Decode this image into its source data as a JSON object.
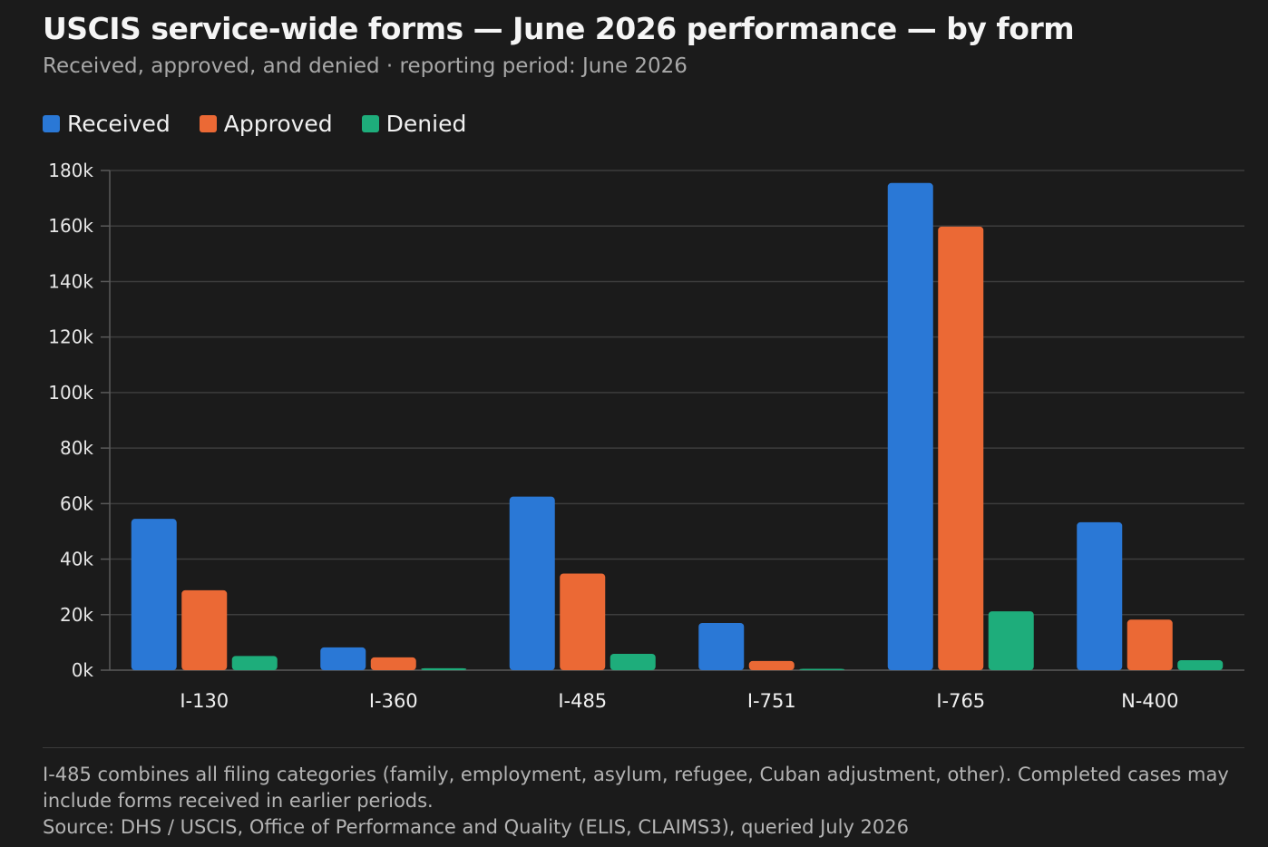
{
  "title": "USCIS service-wide forms — June 2026 performance — by form",
  "subtitle": "Received, approved, and denied · reporting period: June 2026",
  "footnote": "I-485 combines all filing categories (family, employment, asylum, refugee, Cuban adjustment, other). Completed cases may include forms received in earlier periods.",
  "source": "Source: DHS / USCIS, Office of Performance and Quality (ELIS, CLAIMS3), queried July 2026",
  "chart_data": {
    "type": "bar",
    "categories": [
      "I-130",
      "I-360",
      "I-485",
      "I-751",
      "I-765",
      "N-400"
    ],
    "series": [
      {
        "name": "Received",
        "color": "#2a78d6",
        "values": [
          54500,
          8200,
          62500,
          17000,
          175500,
          53300
        ]
      },
      {
        "name": "Approved",
        "color": "#eb6935",
        "values": [
          28800,
          4600,
          34800,
          3300,
          159800,
          18200
        ]
      },
      {
        "name": "Denied",
        "color": "#1ead7b",
        "values": [
          5100,
          700,
          5900,
          400,
          21200,
          3600
        ]
      }
    ],
    "ylim": [
      0,
      180000
    ],
    "yticks": [
      0,
      20000,
      40000,
      60000,
      80000,
      100000,
      120000,
      140000,
      160000,
      180000
    ],
    "ytick_labels": [
      "0k",
      "20k",
      "40k",
      "60k",
      "80k",
      "100k",
      "120k",
      "140k",
      "160k",
      "180k"
    ],
    "xlabel": "",
    "ylabel": "",
    "grid": true,
    "legend_position": "top-left"
  }
}
